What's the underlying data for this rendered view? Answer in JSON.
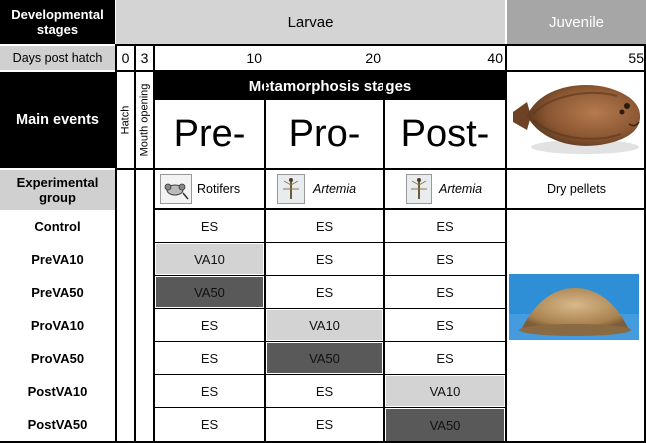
{
  "header": {
    "developmental_stages": "Developmental stages",
    "larvae": "Larvae",
    "juvenile": "Juvenile"
  },
  "days_row": {
    "label": "Days post hatch",
    "day_0": "0",
    "day_3": "3",
    "day_10": "10",
    "day_20": "20",
    "day_40": "40",
    "day_55": "55"
  },
  "events": {
    "label": "Main events",
    "hatch": "Hatch",
    "mouth_opening": "Mouth opening",
    "metamorphosis_title": "Metamorphosis stages",
    "stages": [
      "Pre-",
      "Pro-",
      "Post-"
    ]
  },
  "feeds": {
    "label": "Experimental group",
    "rotifers": "Rotifers",
    "artemia_1": "Artemia",
    "artemia_2": "Artemia",
    "dry_pellets": "Dry pellets"
  },
  "groups": [
    {
      "name": "Control",
      "pre": "ES",
      "pro": "ES",
      "post": "ES"
    },
    {
      "name": "PreVA10",
      "pre": "VA10",
      "pro": "ES",
      "post": "ES"
    },
    {
      "name": "PreVA50",
      "pre": "VA50",
      "pro": "ES",
      "post": "ES"
    },
    {
      "name": "ProVA10",
      "pre": "ES",
      "pro": "VA10",
      "post": "ES"
    },
    {
      "name": "ProVA50",
      "pre": "ES",
      "pro": "VA50",
      "post": "ES"
    },
    {
      "name": "PostVA10",
      "pre": "ES",
      "pro": "ES",
      "post": "VA10"
    },
    {
      "name": "PostVA50",
      "pre": "ES",
      "pro": "ES",
      "post": "VA50"
    }
  ],
  "colors": {
    "header_gray": "#d4d4d4",
    "juvenile_gray": "#a6a6a6",
    "va10_fill": "#d3d3d3",
    "va50_fill": "#595959",
    "label_gray": "#d0d0d0"
  }
}
